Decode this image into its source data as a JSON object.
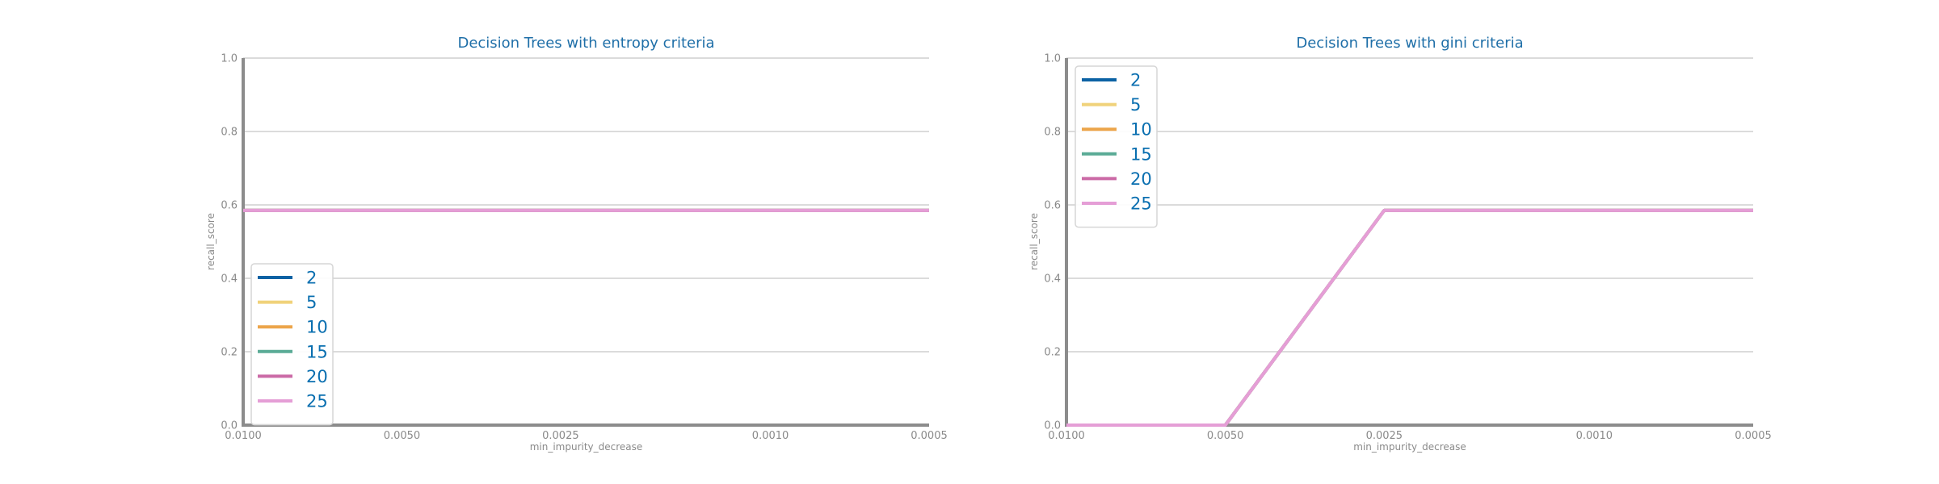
{
  "chart_data": [
    {
      "type": "line",
      "title": "Decision Trees with entropy criteria",
      "xlabel": "min_impurity_decrease",
      "ylabel": "recall_score",
      "x": [
        0.01,
        0.005,
        0.0025,
        0.001,
        0.0005
      ],
      "x_tick_labels": [
        "0.0100",
        "0.0050",
        "0.0025",
        "0.0010",
        "0.0005"
      ],
      "y_ticks": [
        "0.0",
        "0.2",
        "0.4",
        "0.6",
        "0.8",
        "1.0"
      ],
      "ylim": [
        0,
        1
      ],
      "x_axis_reversed": true,
      "grid": "horizontal",
      "legend_position": "lower-left",
      "series": [
        {
          "name": "2",
          "color": "#0b62a4",
          "values": [
            0.585,
            0.585,
            0.585,
            0.585,
            0.585
          ]
        },
        {
          "name": "5",
          "color": "#f0d27a",
          "values": [
            0.585,
            0.585,
            0.585,
            0.585,
            0.585
          ]
        },
        {
          "name": "10",
          "color": "#eca54a",
          "values": [
            0.585,
            0.585,
            0.585,
            0.585,
            0.585
          ]
        },
        {
          "name": "15",
          "color": "#5aab96",
          "values": [
            0.585,
            0.585,
            0.585,
            0.585,
            0.585
          ]
        },
        {
          "name": "20",
          "color": "#cb6aa6",
          "values": [
            0.585,
            0.585,
            0.585,
            0.585,
            0.585
          ]
        },
        {
          "name": "25",
          "color": "#e59ed6",
          "values": [
            0.585,
            0.585,
            0.585,
            0.585,
            0.585
          ]
        }
      ]
    },
    {
      "type": "line",
      "title": "Decision Trees with gini criteria",
      "xlabel": "min_impurity_decrease",
      "ylabel": "recall_score",
      "x": [
        0.01,
        0.005,
        0.0025,
        0.001,
        0.0005
      ],
      "x_tick_labels": [
        "0.0100",
        "0.0050",
        "0.0025",
        "0.0010",
        "0.0005"
      ],
      "y_ticks": [
        "0.0",
        "0.2",
        "0.4",
        "0.6",
        "0.8",
        "1.0"
      ],
      "ylim": [
        0,
        1
      ],
      "x_axis_reversed": true,
      "grid": "horizontal",
      "legend_position": "upper-left",
      "series": [
        {
          "name": "2",
          "color": "#0b62a4",
          "values": [
            0.0,
            0.0,
            0.585,
            0.585,
            0.585
          ]
        },
        {
          "name": "5",
          "color": "#f0d27a",
          "values": [
            0.0,
            0.0,
            0.585,
            0.585,
            0.585
          ]
        },
        {
          "name": "10",
          "color": "#eca54a",
          "values": [
            0.0,
            0.0,
            0.585,
            0.585,
            0.585
          ]
        },
        {
          "name": "15",
          "color": "#5aab96",
          "values": [
            0.0,
            0.0,
            0.585,
            0.585,
            0.585
          ]
        },
        {
          "name": "20",
          "color": "#cb6aa6",
          "values": [
            0.0,
            0.0,
            0.585,
            0.585,
            0.585
          ]
        },
        {
          "name": "25",
          "color": "#e59ed6",
          "values": [
            0.0,
            0.0,
            0.585,
            0.585,
            0.585
          ]
        }
      ]
    }
  ]
}
